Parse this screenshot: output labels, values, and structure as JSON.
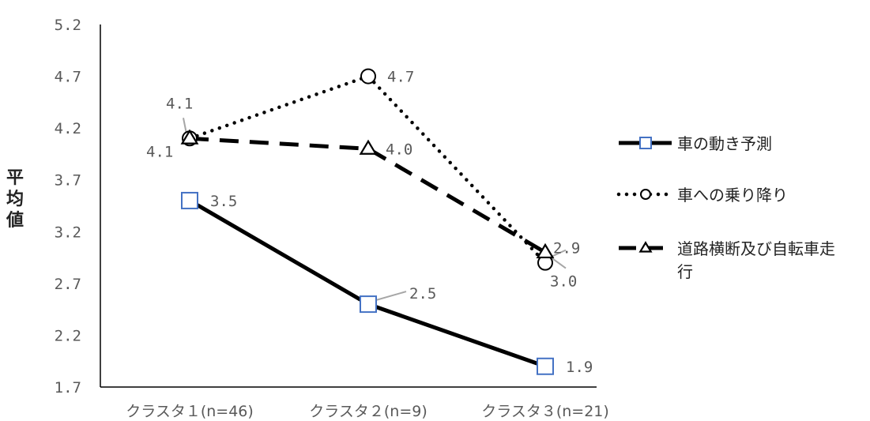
{
  "chart_data": {
    "type": "line",
    "ylabel": "平均値",
    "ylim": [
      1.7,
      5.2
    ],
    "yticks": [
      "5.2",
      "4.7",
      "4.2",
      "3.7",
      "3.2",
      "2.7",
      "2.2",
      "1.7"
    ],
    "categories": [
      "クラスタ１(n=46)",
      "クラスタ２(n=9)",
      "クラスタ３(n=21)"
    ],
    "grid": false,
    "legend_position": "right",
    "series": [
      {
        "name": "車の動き予測",
        "values": [
          3.5,
          2.5,
          1.9
        ],
        "labels": [
          "3.5",
          "2.5",
          "1.9"
        ],
        "line_style": "solid",
        "marker": "square",
        "marker_color": "#4472c4"
      },
      {
        "name": "車への乗り降り",
        "values": [
          4.1,
          4.7,
          2.9
        ],
        "labels": [
          "4.1",
          "4.7",
          "2.9"
        ],
        "line_style": "dotted",
        "marker": "circle",
        "marker_color": "#000000"
      },
      {
        "name": "道路横断及び自転車走行",
        "name_lines": [
          "道路横断及び自転車走",
          "行"
        ],
        "values": [
          4.1,
          4.0,
          3.0
        ],
        "labels": [
          "4.1",
          "4.0",
          "3.0"
        ],
        "line_style": "dashed",
        "marker": "triangle",
        "marker_color": "#000000"
      }
    ]
  }
}
